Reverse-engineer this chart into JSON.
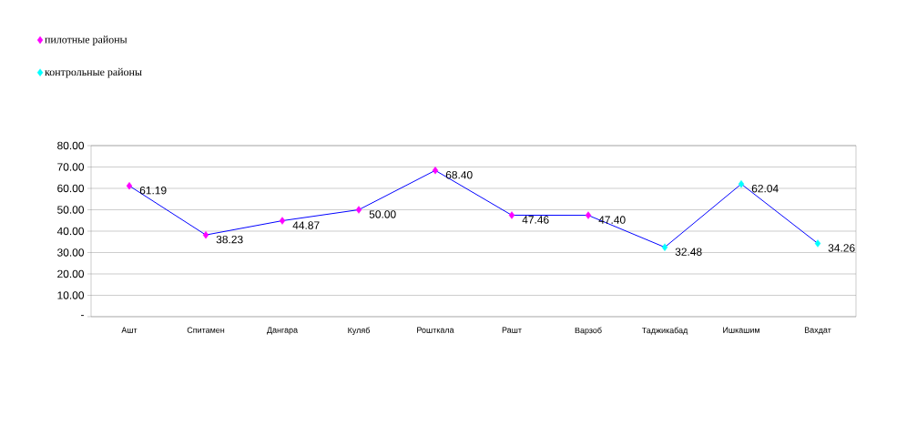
{
  "chart_data": {
    "type": "line",
    "categories": [
      "Ашт",
      "Спитамен",
      "Дангара",
      "Куляб",
      "Рошткала",
      "Рашт",
      "Варзоб",
      "Таджикабад",
      "Ишкашим",
      "Вахдат"
    ],
    "series": [
      {
        "type": "line",
        "color": "#0000ff",
        "marker": "none",
        "line_style": "solid",
        "values": [
          61.19,
          38.23,
          44.87,
          50.0,
          68.4,
          47.46,
          47.4,
          32.48,
          62.04,
          34.26
        ]
      },
      {
        "type": "scatter",
        "name": "пилотные районы",
        "color": "#ff00ff",
        "marker": "diamond",
        "values": [
          61.19,
          38.23,
          44.87,
          50.0,
          68.4,
          47.46,
          47.4,
          null,
          null,
          null
        ],
        "value_labels": [
          "61.19",
          "38.23",
          "44.87",
          "50.00",
          "68.40",
          "47.46",
          "47.40",
          null,
          null,
          null
        ]
      },
      {
        "type": "scatter",
        "name": "контрольные районы",
        "color": "#00ffff",
        "marker": "diamond",
        "values": [
          null,
          null,
          null,
          null,
          null,
          null,
          null,
          32.48,
          62.04,
          34.26
        ],
        "value_labels": [
          null,
          null,
          null,
          null,
          null,
          null,
          null,
          "32.48",
          "62.04",
          "34.26"
        ]
      }
    ],
    "ylim": [
      0,
      80
    ],
    "yticks": [
      {
        "value": 0,
        "label": "-"
      },
      {
        "value": 10,
        "label": "10.00"
      },
      {
        "value": 20,
        "label": "20.00"
      },
      {
        "value": 30,
        "label": "30.00"
      },
      {
        "value": 40,
        "label": "40.00"
      },
      {
        "value": 50,
        "label": "50.00"
      },
      {
        "value": 60,
        "label": "60.00"
      },
      {
        "value": 70,
        "label": "70.00"
      },
      {
        "value": 80,
        "label": "80.00"
      }
    ],
    "grid": "y",
    "legend": "top left"
  }
}
